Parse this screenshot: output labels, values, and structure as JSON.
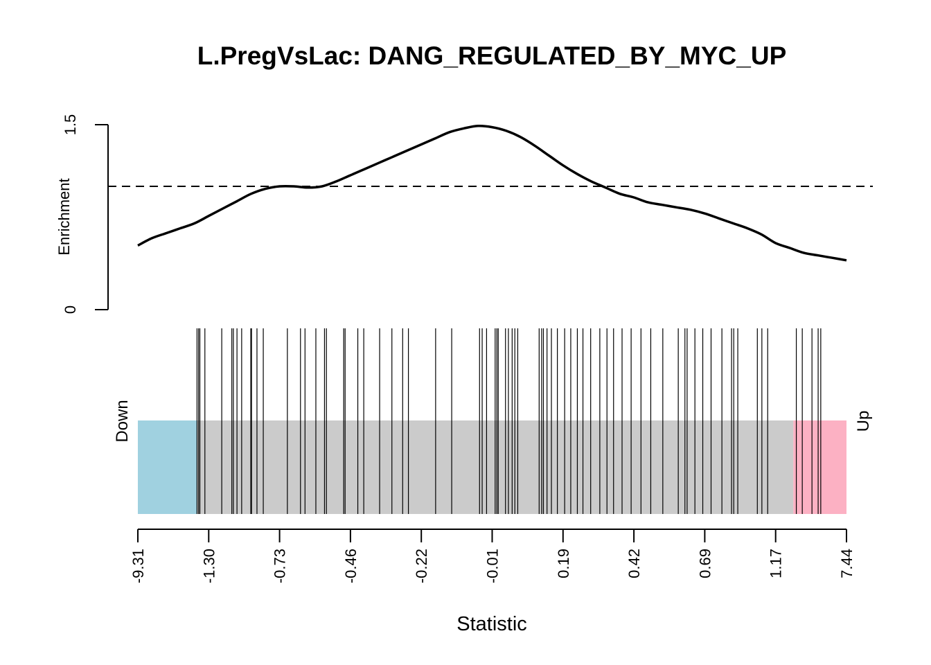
{
  "chart_data": {
    "type": "barcode",
    "title": "L.PregVsLac: DANG_REGULATED_BY_MYC_UP",
    "colors": {
      "down": "#a0d1e0",
      "middle": "#cbcbcb",
      "up": "#fcb1c3",
      "curve": "#000000",
      "ticks": "#000000"
    },
    "enrichment": {
      "ylabel": "Enrichment",
      "ylim": [
        0,
        1.5
      ],
      "yticks": [
        "0",
        "1.5"
      ],
      "reference_line": 1.0,
      "x": [
        0.0,
        0.02,
        0.04,
        0.06,
        0.08,
        0.1,
        0.12,
        0.14,
        0.16,
        0.18,
        0.2,
        0.22,
        0.24,
        0.26,
        0.28,
        0.3,
        0.32,
        0.34,
        0.36,
        0.38,
        0.4,
        0.42,
        0.44,
        0.46,
        0.48,
        0.5,
        0.52,
        0.54,
        0.56,
        0.58,
        0.6,
        0.62,
        0.64,
        0.66,
        0.68,
        0.7,
        0.72,
        0.74,
        0.76,
        0.78,
        0.8,
        0.82,
        0.84,
        0.86,
        0.88,
        0.9,
        0.92,
        0.94,
        0.96,
        0.98,
        1.0
      ],
      "y": [
        0.52,
        0.58,
        0.62,
        0.66,
        0.7,
        0.76,
        0.82,
        0.88,
        0.94,
        0.98,
        1.0,
        1.0,
        0.99,
        1.0,
        1.04,
        1.09,
        1.14,
        1.19,
        1.24,
        1.29,
        1.34,
        1.39,
        1.44,
        1.47,
        1.49,
        1.48,
        1.45,
        1.4,
        1.33,
        1.25,
        1.17,
        1.1,
        1.04,
        0.99,
        0.94,
        0.91,
        0.87,
        0.85,
        0.83,
        0.81,
        0.78,
        0.74,
        0.7,
        0.66,
        0.61,
        0.54,
        0.5,
        0.46,
        0.44,
        0.42,
        0.4
      ]
    },
    "barcode": {
      "xlabel": "Statistic",
      "down_label": "Down",
      "up_label": "Up",
      "xticks": [
        "-9.31",
        "-1.30",
        "-0.73",
        "-0.46",
        "-0.22",
        "-0.01",
        "0.19",
        "0.42",
        "0.69",
        "1.17",
        "7.44"
      ],
      "down_fraction": 0.0835,
      "up_fraction": 0.075,
      "tick_positions": [
        0.0835,
        0.0857,
        0.0875,
        0.0946,
        0.1184,
        0.1326,
        0.1348,
        0.1399,
        0.1465,
        0.1594,
        0.1604,
        0.1681,
        0.177,
        0.211,
        0.2295,
        0.2359,
        0.2512,
        0.2634,
        0.2661,
        0.2905,
        0.2925,
        0.3104,
        0.3188,
        0.3412,
        0.3585,
        0.3737,
        0.3818,
        0.4202,
        0.4429,
        0.4822,
        0.4859,
        0.4921,
        0.5042,
        0.5067,
        0.5086,
        0.5188,
        0.5229,
        0.5282,
        0.532,
        0.5361,
        0.5663,
        0.5698,
        0.5723,
        0.5774,
        0.5836,
        0.592,
        0.6023,
        0.6109,
        0.6202,
        0.6281,
        0.639,
        0.6519,
        0.662,
        0.6713,
        0.6833,
        0.6961,
        0.71,
        0.7238,
        0.7408,
        0.7626,
        0.772,
        0.7751,
        0.7861,
        0.7972,
        0.8089,
        0.8242,
        0.8378,
        0.8409,
        0.8466,
        0.8742,
        0.8806,
        0.8888,
        0.9292,
        0.9376,
        0.9513,
        0.96,
        0.9637
      ]
    }
  }
}
